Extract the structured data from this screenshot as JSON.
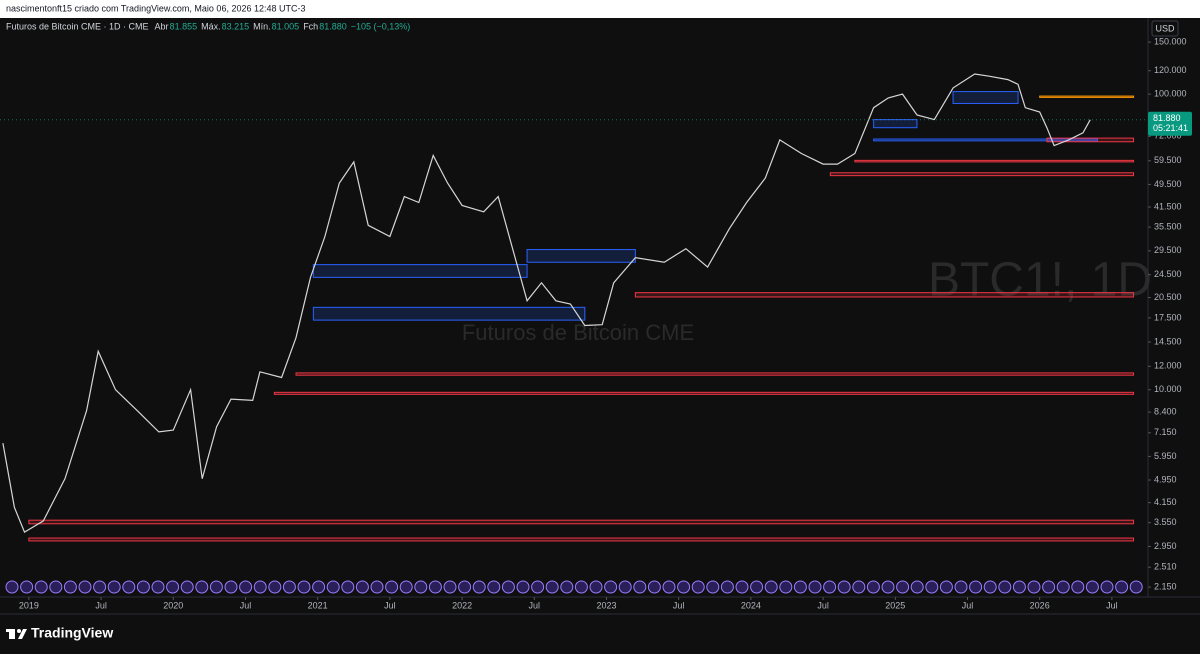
{
  "header": {
    "author_line": "nascimentonft15 criado com TradingView.com, Maio 06, 2026 12:48 UTC-3",
    "symbol": "Futuros de Bitcoin CME · 1D · CME",
    "ohlc": [
      {
        "label": "Abr",
        "value": "81.855"
      },
      {
        "label": "Máx.",
        "value": "83.215"
      },
      {
        "label": "Mín.",
        "value": "81.005"
      },
      {
        "label": "Fch",
        "value": "81.880"
      }
    ],
    "change": "−105 (−0,13%)"
  },
  "watermark": {
    "ticker": "BTC1!, 1D",
    "name": "Futuros de Bitcoin CME"
  },
  "footer": {
    "brand": "TradingView"
  },
  "chart_data": {
    "type": "line",
    "currency": "USD",
    "log_scale": true,
    "grid": false,
    "series": [
      {
        "name": "BTC1!",
        "color": "#d6d6d6",
        "x": [
          2018.82,
          2018.9,
          2018.97,
          2019.1,
          2019.25,
          2019.4,
          2019.48,
          2019.6,
          2019.75,
          2019.9,
          2020.0,
          2020.12,
          2020.2,
          2020.3,
          2020.4,
          2020.55,
          2020.6,
          2020.75,
          2020.85,
          2020.95,
          2021.05,
          2021.15,
          2021.25,
          2021.35,
          2021.5,
          2021.6,
          2021.7,
          2021.8,
          2021.9,
          2022.0,
          2022.15,
          2022.25,
          2022.35,
          2022.45,
          2022.55,
          2022.65,
          2022.75,
          2022.85,
          2022.97,
          2023.05,
          2023.2,
          2023.4,
          2023.55,
          2023.7,
          2023.85,
          2023.97,
          2024.1,
          2024.2,
          2024.35,
          2024.5,
          2024.6,
          2024.72,
          2024.85,
          2024.95,
          2025.05,
          2025.15,
          2025.27,
          2025.4,
          2025.55,
          2025.65,
          2025.78,
          2025.85,
          2025.9,
          2026.0,
          2026.05,
          2026.1,
          2026.2,
          2026.3,
          2026.35
        ],
        "values": [
          6600,
          4000,
          3300,
          3600,
          5000,
          8500,
          13500,
          10000,
          8500,
          7200,
          7300,
          10000,
          5000,
          7500,
          9300,
          9200,
          11500,
          11000,
          15000,
          24000,
          33000,
          50000,
          59000,
          36000,
          33000,
          45000,
          43000,
          62000,
          50000,
          42000,
          40000,
          45000,
          30000,
          20000,
          23000,
          20000,
          19500,
          16500,
          16600,
          23000,
          28000,
          27000,
          30000,
          26000,
          35000,
          43000,
          52000,
          70000,
          63000,
          58000,
          58000,
          63000,
          90000,
          97000,
          100000,
          85000,
          82000,
          105000,
          117000,
          115000,
          112000,
          108000,
          90000,
          87000,
          77000,
          67000,
          70000,
          74000,
          81880
        ]
      }
    ],
    "zones": [
      {
        "x0": 2020.97,
        "x1": 2022.45,
        "low": 24000,
        "high": 26500,
        "color": "#2962ff"
      },
      {
        "x0": 2020.97,
        "x1": 2022.85,
        "low": 17200,
        "high": 19000,
        "color": "#2962ff"
      },
      {
        "x0": 2022.45,
        "x1": 2023.2,
        "low": 27000,
        "high": 29800,
        "color": "#2962ff"
      },
      {
        "x0": 2024.85,
        "x1": 2026.4,
        "low": 69500,
        "high": 70500,
        "color": "#2962ff"
      },
      {
        "x0": 2024.85,
        "x1": 2025.15,
        "low": 77000,
        "high": 82000,
        "color": "#2962ff"
      },
      {
        "x0": 2025.4,
        "x1": 2025.85,
        "low": 93000,
        "high": 102000,
        "color": "#2962ff"
      },
      {
        "x0": 2019.0,
        "x1": 2026.65,
        "low": 3520,
        "high": 3620,
        "color": "#f23645"
      },
      {
        "x0": 2019.0,
        "x1": 2026.65,
        "low": 3080,
        "high": 3150,
        "color": "#f23645"
      },
      {
        "x0": 2020.7,
        "x1": 2026.65,
        "low": 9650,
        "high": 9800,
        "color": "#f23645"
      },
      {
        "x0": 2020.85,
        "x1": 2026.65,
        "low": 11200,
        "high": 11400,
        "color": "#f23645"
      },
      {
        "x0": 2023.2,
        "x1": 2026.65,
        "low": 20600,
        "high": 21300,
        "color": "#f23645"
      },
      {
        "x0": 2024.55,
        "x1": 2026.65,
        "low": 53000,
        "high": 54200,
        "color": "#f23645"
      },
      {
        "x0": 2024.72,
        "x1": 2026.65,
        "low": 59000,
        "high": 59700,
        "color": "#f23645"
      },
      {
        "x0": 2026.05,
        "x1": 2026.65,
        "low": 69000,
        "high": 71000,
        "color": "#f23645"
      },
      {
        "x0": 2026.0,
        "x1": 2026.65,
        "low": 97500,
        "high": 98500,
        "color": "#ff9800"
      }
    ],
    "last_price": {
      "value": 81880,
      "label": "81.880",
      "countdown": "05:21:41"
    },
    "xlim": [
      2018.8,
      2026.75
    ],
    "xticks": [
      {
        "value": 2019,
        "label": "2019"
      },
      {
        "value": 2019.5,
        "label": "Jul"
      },
      {
        "value": 2020,
        "label": "2020"
      },
      {
        "value": 2020.5,
        "label": "Jul"
      },
      {
        "value": 2021,
        "label": "2021"
      },
      {
        "value": 2021.5,
        "label": "Jul"
      },
      {
        "value": 2022,
        "label": "2022"
      },
      {
        "value": 2022.5,
        "label": "Jul"
      },
      {
        "value": 2023,
        "label": "2023"
      },
      {
        "value": 2023.5,
        "label": "Jul"
      },
      {
        "value": 2024,
        "label": "2024"
      },
      {
        "value": 2024.5,
        "label": "Jul"
      },
      {
        "value": 2025,
        "label": "2025"
      },
      {
        "value": 2025.5,
        "label": "Jul"
      },
      {
        "value": 2026,
        "label": "2026"
      },
      {
        "value": 2026.5,
        "label": "Jul"
      }
    ],
    "ylim": [
      1990,
      161000
    ],
    "yticks": [
      {
        "value": 150000,
        "label": "150.000"
      },
      {
        "value": 120000,
        "label": "120.000"
      },
      {
        "value": 100000,
        "label": "100.000"
      },
      {
        "value": 72000,
        "label": "72.000"
      },
      {
        "value": 59500,
        "label": "59.500"
      },
      {
        "value": 49500,
        "label": "49.500"
      },
      {
        "value": 41500,
        "label": "41.500"
      },
      {
        "value": 35500,
        "label": "35.500"
      },
      {
        "value": 29500,
        "label": "29.500"
      },
      {
        "value": 24500,
        "label": "24.500"
      },
      {
        "value": 20500,
        "label": "20.500"
      },
      {
        "value": 17500,
        "label": "17.500"
      },
      {
        "value": 14500,
        "label": "14.500"
      },
      {
        "value": 12000,
        "label": "12.000"
      },
      {
        "value": 10000,
        "label": "10.000"
      },
      {
        "value": 8400,
        "label": "8.400"
      },
      {
        "value": 7150,
        "label": "7.150"
      },
      {
        "value": 5950,
        "label": "5.950"
      },
      {
        "value": 4950,
        "label": "4.950"
      },
      {
        "value": 4150,
        "label": "4.150"
      },
      {
        "value": 3550,
        "label": "3.550"
      },
      {
        "value": 2950,
        "label": "2.950"
      },
      {
        "value": 2510,
        "label": "2.510"
      },
      {
        "value": 2150,
        "label": "2.150"
      }
    ]
  }
}
